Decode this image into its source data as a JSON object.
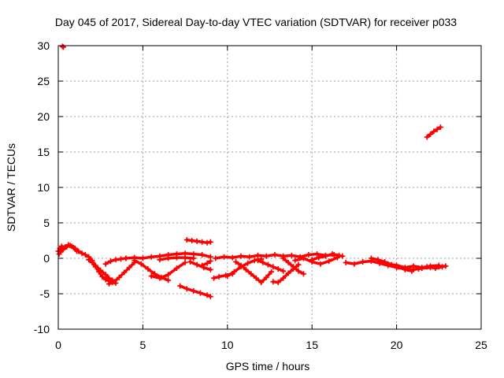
{
  "chart_data": {
    "type": "scatter",
    "title": "Day 045 of 2017, Sidereal Day-to-day VTEC variation (SDTVAR) for receiver p033",
    "xlabel": "GPS time / hours",
    "ylabel": "SDTVAR / TECUs",
    "xlim": [
      0,
      25
    ],
    "ylim": [
      -10,
      30
    ],
    "x_ticks": [
      0,
      5,
      10,
      15,
      20,
      25
    ],
    "y_ticks": [
      -10,
      -5,
      0,
      5,
      10,
      15,
      20,
      25,
      30
    ],
    "grid": true,
    "marker": "plus",
    "color": "#ff0000",
    "series": [
      {
        "name": "s1",
        "x": [
          0.0,
          0.1,
          0.2,
          0.4,
          0.6,
          0.8,
          1.0,
          1.2,
          1.4,
          1.6,
          1.8,
          2.0
        ],
        "y": [
          1.0,
          1.4,
          1.7,
          1.6,
          1.9,
          1.7,
          1.4,
          1.0,
          0.7,
          0.5,
          0.2,
          -0.3
        ]
      },
      {
        "name": "s2",
        "x": [
          0.3,
          0.5,
          0.7,
          0.9,
          1.1
        ],
        "y": [
          1.3,
          1.6,
          1.8,
          1.5,
          1.0
        ]
      },
      {
        "name": "s3",
        "x": [
          0.05,
          0.15,
          0.25
        ],
        "y": [
          0.6,
          0.9,
          1.2
        ]
      },
      {
        "name": "s4",
        "x": [
          0.25,
          0.3
        ],
        "y": [
          29.9,
          29.8
        ]
      },
      {
        "name": "s5",
        "x": [
          1.8,
          2.0,
          2.2,
          2.4,
          2.6,
          2.8,
          3.0,
          3.2
        ],
        "y": [
          -0.2,
          -0.6,
          -1.2,
          -1.9,
          -2.6,
          -3.0,
          -3.2,
          -3.4
        ]
      },
      {
        "name": "s6",
        "x": [
          2.0,
          2.2,
          2.5,
          2.8,
          3.0,
          3.2,
          3.4
        ],
        "y": [
          -0.5,
          -1.0,
          -1.7,
          -2.3,
          -2.8,
          -3.1,
          -3.5
        ]
      },
      {
        "name": "s7",
        "x": [
          3.0,
          3.3,
          3.6,
          3.9,
          4.2,
          4.5
        ],
        "y": [
          -3.6,
          -3.3,
          -2.7,
          -2.0,
          -1.3,
          -0.6
        ]
      },
      {
        "name": "s8",
        "x": [
          2.8,
          3.1,
          3.4,
          3.7,
          4.0
        ],
        "y": [
          -0.8,
          -0.4,
          -0.2,
          -0.1,
          0.0
        ]
      },
      {
        "name": "s9",
        "x": [
          4.0,
          4.5,
          5.0,
          5.5,
          6.0,
          6.5,
          7.0,
          7.5,
          8.0,
          8.5,
          9.0
        ],
        "y": [
          0.0,
          0.1,
          0.0,
          0.2,
          0.3,
          0.5,
          0.6,
          0.7,
          0.6,
          0.5,
          0.2
        ]
      },
      {
        "name": "s10",
        "x": [
          4.5,
          4.9,
          5.3,
          5.7,
          6.1,
          6.5
        ],
        "y": [
          -0.3,
          -0.8,
          -1.5,
          -2.2,
          -2.7,
          -3.1
        ]
      },
      {
        "name": "s11",
        "x": [
          5.5,
          6.0,
          6.5,
          7.0,
          7.5
        ],
        "y": [
          -2.5,
          -2.8,
          -2.3,
          -1.4,
          -0.6
        ]
      },
      {
        "name": "s12",
        "x": [
          6.0,
          6.5,
          7.0,
          7.5,
          8.0
        ],
        "y": [
          -0.2,
          0.0,
          0.1,
          0.1,
          0.0
        ]
      },
      {
        "name": "s13",
        "x": [
          7.2,
          7.6,
          8.0,
          8.4,
          8.8,
          9.0
        ],
        "y": [
          -3.9,
          -4.3,
          -4.6,
          -4.9,
          -5.2,
          -5.4
        ]
      },
      {
        "name": "s14",
        "x": [
          7.6,
          7.9,
          8.2,
          8.5,
          8.8,
          9.0
        ],
        "y": [
          2.6,
          2.5,
          2.4,
          2.3,
          2.2,
          2.3
        ]
      },
      {
        "name": "s15",
        "x": [
          7.8,
          8.2,
          8.6,
          9.0
        ],
        "y": [
          -0.5,
          -0.9,
          -1.3,
          -1.6
        ]
      },
      {
        "name": "s16",
        "x": [
          8.5,
          8.8,
          9.0
        ],
        "y": [
          -1.0,
          -0.7,
          -0.4
        ]
      },
      {
        "name": "s17",
        "x": [
          9.2,
          9.5,
          9.9,
          10.3
        ],
        "y": [
          -2.8,
          -2.6,
          -2.4,
          -2.2
        ]
      },
      {
        "name": "s18",
        "x": [
          9.3,
          9.8,
          10.3,
          10.8,
          11.3,
          11.8,
          12.3,
          12.8,
          13.3,
          13.8,
          14.3,
          14.8,
          15.3,
          15.8,
          16.3,
          16.8
        ],
        "y": [
          0.0,
          0.2,
          0.1,
          0.3,
          0.2,
          0.4,
          0.3,
          0.5,
          0.3,
          0.4,
          0.2,
          0.5,
          0.6,
          0.4,
          0.5,
          0.3
        ]
      },
      {
        "name": "s19",
        "x": [
          10.0,
          10.4,
          10.8,
          11.2,
          11.6,
          12.0
        ],
        "y": [
          -2.5,
          -1.9,
          -1.2,
          -0.7,
          -0.3,
          -0.1
        ]
      },
      {
        "name": "s20",
        "x": [
          10.5,
          10.8,
          11.1,
          11.4,
          11.7,
          12.0,
          12.3,
          12.6
        ],
        "y": [
          -0.5,
          -1.0,
          -1.6,
          -2.2,
          -2.8,
          -3.4,
          -2.7,
          -1.9
        ]
      },
      {
        "name": "s21",
        "x": [
          11.8,
          12.1,
          12.4,
          12.7,
          13.0,
          13.3
        ],
        "y": [
          -0.3,
          -0.6,
          -0.9,
          -1.2,
          -1.5,
          -1.8
        ]
      },
      {
        "name": "s22",
        "x": [
          12.7,
          13.0,
          13.3,
          13.6,
          13.9,
          14.2
        ],
        "y": [
          -3.3,
          -3.4,
          -2.8,
          -2.1,
          -1.5,
          -0.9
        ]
      },
      {
        "name": "s23",
        "x": [
          13.3,
          13.6,
          13.9,
          14.2,
          14.5
        ],
        "y": [
          0.0,
          -0.6,
          -1.2,
          -1.8,
          -2.2
        ]
      },
      {
        "name": "s24",
        "x": [
          14.0,
          14.5,
          15.0,
          15.5,
          16.0,
          16.5
        ],
        "y": [
          -0.3,
          0.0,
          -0.5,
          -0.8,
          -0.4,
          0.1
        ]
      },
      {
        "name": "s25",
        "x": [
          15.0,
          15.4,
          15.8,
          16.2,
          16.6
        ],
        "y": [
          -0.2,
          0.1,
          0.3,
          0.6,
          0.4
        ]
      },
      {
        "name": "s26",
        "x": [
          17.0,
          17.5,
          18.0,
          18.5,
          19.0,
          19.5,
          20.0,
          20.5,
          21.0,
          21.5,
          22.0,
          22.5,
          22.9
        ],
        "y": [
          -0.6,
          -0.8,
          -0.5,
          -0.4,
          -0.7,
          -1.0,
          -1.3,
          -1.5,
          -1.6,
          -1.4,
          -1.3,
          -1.2,
          -1.1
        ]
      },
      {
        "name": "s27",
        "x": [
          18.5,
          18.9,
          19.3,
          19.7,
          20.1,
          20.5,
          20.9
        ],
        "y": [
          0.0,
          -0.2,
          -0.5,
          -0.9,
          -1.2,
          -1.6,
          -1.8
        ]
      },
      {
        "name": "s28",
        "x": [
          19.0,
          19.5,
          20.0,
          20.5,
          21.0,
          21.5,
          22.0,
          22.5
        ],
        "y": [
          -0.5,
          -0.8,
          -1.0,
          -1.3,
          -1.1,
          -1.3,
          -1.1,
          -1.0
        ]
      },
      {
        "name": "s29",
        "x": [
          21.3,
          21.8,
          22.3,
          22.7
        ],
        "y": [
          -1.5,
          -1.2,
          -1.4,
          -1.2
        ]
      },
      {
        "name": "s30",
        "x": [
          21.8,
          22.0,
          22.2,
          22.4,
          22.6
        ],
        "y": [
          17.1,
          17.5,
          17.9,
          18.2,
          18.5
        ]
      }
    ]
  }
}
